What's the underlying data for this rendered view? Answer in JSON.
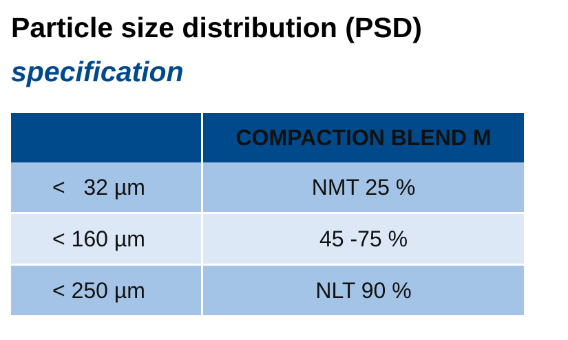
{
  "header": {
    "title": "Particle size distribution (PSD)",
    "subtitle": "specification"
  },
  "table": {
    "columns": [
      "",
      "COMPACTION BLEND M"
    ],
    "rows": [
      {
        "size": "<   32 µm",
        "spec": "NMT 25 %"
      },
      {
        "size": "< 160 µm",
        "spec": "45 -75 %"
      },
      {
        "size": "< 250 µm",
        "spec": "NLT 90 %"
      }
    ]
  },
  "colors": {
    "header_bg": "#004a8c",
    "row_dark": "#a4c4e7",
    "row_light": "#dce8f5",
    "subtitle": "#004a8c"
  }
}
